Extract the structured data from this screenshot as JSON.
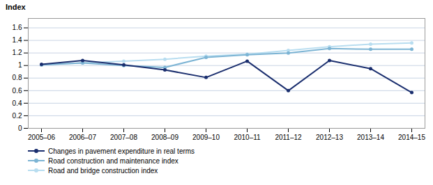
{
  "chart_data": {
    "type": "line",
    "y_label": "Index",
    "categories": [
      "2005–06",
      "2006–07",
      "2007–08",
      "2008–09",
      "2009–10",
      "2010–11",
      "2011–12",
      "2012–13",
      "2013–14",
      "2014–15"
    ],
    "series": [
      {
        "name": "Changes in pavement expenditure in real terms",
        "color": "#1a2e6e",
        "values": [
          1.02,
          1.08,
          1.01,
          0.93,
          0.81,
          1.07,
          0.6,
          1.08,
          0.95,
          0.57
        ]
      },
      {
        "name": "Road construction and maintenance index",
        "color": "#7cb4d4",
        "values": [
          1.01,
          1.04,
          1.0,
          0.97,
          1.13,
          1.17,
          1.2,
          1.27,
          1.26,
          1.26
        ]
      },
      {
        "name": "Road and bridge construction index",
        "color": "#b8ddf0",
        "values": [
          1.01,
          1.04,
          1.07,
          1.1,
          1.15,
          1.18,
          1.24,
          1.3,
          1.34,
          1.36
        ]
      }
    ],
    "ylim": [
      0,
      1.75
    ],
    "yticks": [
      0,
      0.2,
      0.4,
      0.6,
      0.8,
      1.0,
      1.2,
      1.4,
      1.6
    ],
    "grid": true,
    "marker": "circle",
    "legend": "bottom"
  }
}
